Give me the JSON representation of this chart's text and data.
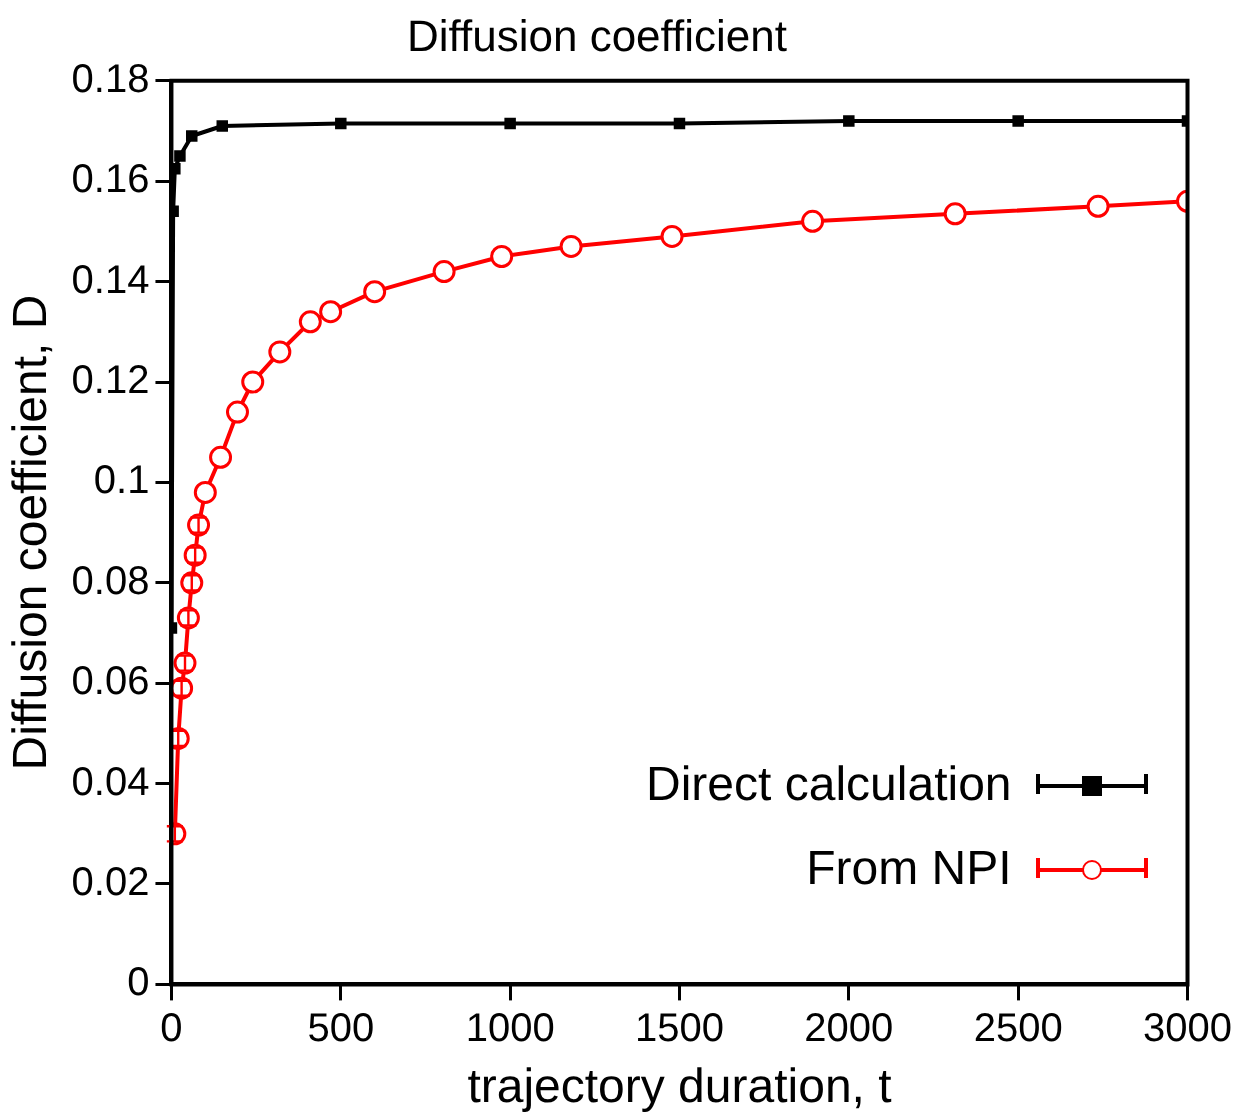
{
  "chart_data": {
    "type": "line",
    "title": "Diffusion coefficient",
    "xlabel": "trajectory duration, t",
    "ylabel": "Diffusion coefficient, D",
    "xlim": [
      0,
      3000
    ],
    "xticks": [
      0,
      500,
      1000,
      1500,
      2000,
      2500,
      3000
    ],
    "ylim": [
      0,
      0.18
    ],
    "yticks": [
      0,
      0.02,
      0.04,
      0.06,
      0.08,
      0.1,
      0.12,
      0.14,
      0.16,
      0.18
    ],
    "grid": false,
    "legend": "bottom right",
    "line_style": "solid",
    "series": [
      {
        "name": "Direct calculation",
        "color": "#000000",
        "marker": "square",
        "x": [
          0,
          5,
          10,
          25,
          60,
          150,
          500,
          1000,
          1500,
          2000,
          2500,
          3000
        ],
        "values": [
          0.071,
          0.154,
          0.1625,
          0.165,
          0.169,
          0.171,
          0.1715,
          0.1715,
          0.1715,
          0.172,
          0.172,
          0.172
        ]
      },
      {
        "name": "From NPI",
        "color": "#ff0000",
        "marker": "circle",
        "x": [
          10,
          20,
          30,
          40,
          50,
          60,
          70,
          80,
          100,
          145,
          195,
          240,
          320,
          410,
          470,
          600,
          805,
          975,
          1180,
          1478,
          1893,
          2314,
          2736,
          3000
        ],
        "values": [
          0.03,
          0.049,
          0.059,
          0.064,
          0.073,
          0.08,
          0.0855,
          0.0915,
          0.098,
          0.105,
          0.114,
          0.12,
          0.126,
          0.132,
          0.134,
          0.138,
          0.142,
          0.145,
          0.147,
          0.149,
          0.152,
          0.1535,
          0.155,
          0.156
        ],
        "errors": [
          0.0015,
          0.0015,
          0.0015,
          0.0015,
          0.0015,
          0.0015,
          0.0015,
          0.0015,
          null,
          null,
          null,
          null,
          null,
          null,
          null,
          null,
          null,
          null,
          null,
          null,
          null,
          null,
          null,
          null
        ]
      }
    ]
  }
}
